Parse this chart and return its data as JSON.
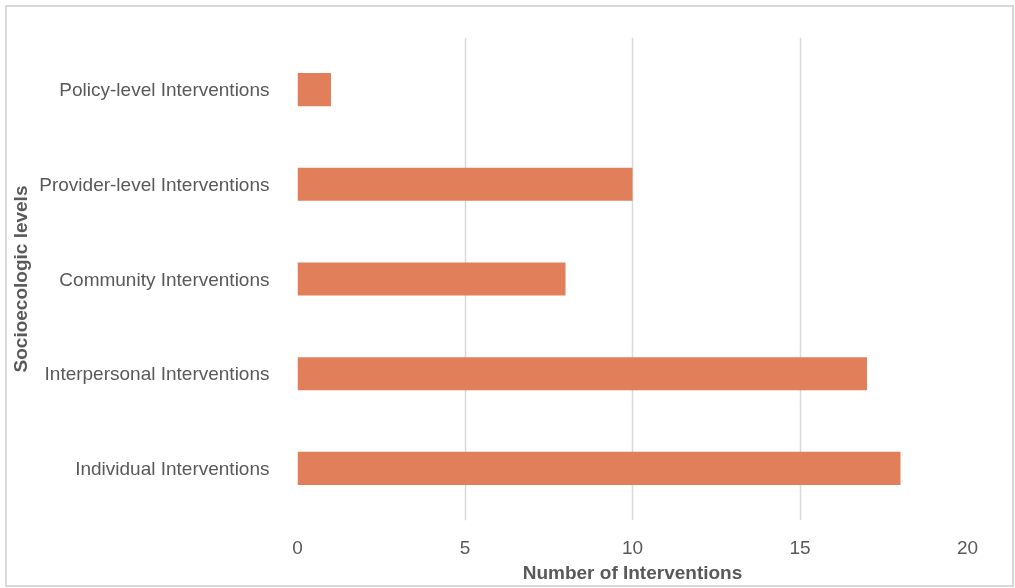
{
  "chart_data": {
    "type": "bar",
    "orientation": "horizontal",
    "xlabel": "Number of Interventions",
    "ylabel": "Socioecologic levels",
    "categories": [
      "Policy-level Interventions",
      "Provider-level Interventions",
      "Community Interventions",
      "Interpersonal Interventions",
      "Individual Interventions"
    ],
    "values": [
      1,
      10,
      8,
      17,
      18
    ],
    "color": "#e07f5a",
    "xlim": [
      0,
      20
    ],
    "xticks": [
      0,
      5,
      10,
      15,
      20
    ],
    "grid": "x"
  }
}
